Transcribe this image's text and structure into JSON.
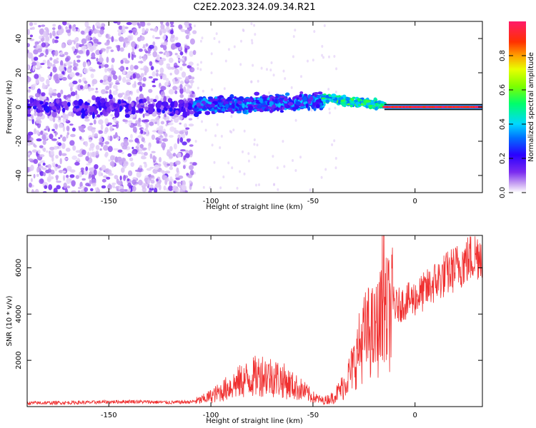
{
  "figure_title": "C2E2.2023.324.09.34.R21",
  "chart_data": [
    {
      "type": "heatmap",
      "title": "C2E2.2023.324.09.34.R21",
      "xlabel": "Height of straight line (km)",
      "ylabel": "Frequency (Hz)",
      "xlim": [
        -190,
        33
      ],
      "ylim": [
        -50,
        50
      ],
      "x_ticks": [
        -150,
        -100,
        -50,
        0
      ],
      "y_ticks": [
        -40,
        -20,
        0,
        20,
        40
      ],
      "colorbar": {
        "label": "Normalized spectral amplitude",
        "range": [
          0.0,
          1.0
        ],
        "ticks": [
          0.0,
          0.2,
          0.4,
          0.6,
          0.8
        ],
        "colormap": [
          "#ffffff",
          "#c9a6f2",
          "#7a2bf0",
          "#2a00ff",
          "#00c8ff",
          "#00ff6a",
          "#b6ff00",
          "#ffbf00",
          "#ff3a00",
          "#ff1a6a"
        ]
      },
      "regions": [
        {
          "x_range": [
            -190,
            -108
          ],
          "f_range": [
            -50,
            50
          ],
          "amplitude": [
            0.02,
            0.15
          ],
          "note": "broadband scatter"
        },
        {
          "x_range": [
            -108,
            -45
          ],
          "f_range": [
            -8,
            8
          ],
          "amplitude": [
            0.15,
            0.35
          ]
        },
        {
          "x_range": [
            -45,
            -15
          ],
          "f_range": [
            -3,
            8
          ],
          "amplitude": [
            0.35,
            0.55
          ]
        },
        {
          "x_range": [
            -15,
            33
          ],
          "f_range": [
            -1.5,
            1.5
          ],
          "amplitude": [
            0.85,
            1.0
          ]
        }
      ],
      "grid": false
    },
    {
      "type": "line",
      "xlabel": "Height of straight line (km)",
      "ylabel": "SNR (10 * v/v)",
      "xlim": [
        -190,
        33
      ],
      "ylim": [
        0,
        7400
      ],
      "x_ticks": [
        -150,
        -100,
        -50,
        0
      ],
      "y_ticks": [
        2000,
        4000,
        6000
      ],
      "series": [
        {
          "color": "#f03030",
          "x": [
            -190,
            -180,
            -170,
            -160,
            -150,
            -140,
            -130,
            -120,
            -110,
            -105,
            -100,
            -95,
            -90,
            -85,
            -80,
            -75,
            -70,
            -65,
            -60,
            -55,
            -50,
            -45,
            -40,
            -35,
            -30,
            -27,
            -25,
            -22,
            -20,
            -18,
            -15,
            -12,
            -10,
            -5,
            0,
            5,
            10,
            15,
            20,
            25,
            30,
            33
          ],
          "y": [
            150,
            160,
            170,
            180,
            200,
            220,
            200,
            180,
            200,
            280,
            450,
            650,
            900,
            1100,
            1250,
            1400,
            1300,
            1150,
            900,
            700,
            400,
            250,
            400,
            900,
            1800,
            2600,
            3000,
            3300,
            3100,
            3500,
            3900,
            4100,
            4300,
            4500,
            4700,
            5000,
            5400,
            5700,
            6000,
            6300,
            6550,
            6700
          ]
        }
      ],
      "grid": false
    }
  ]
}
